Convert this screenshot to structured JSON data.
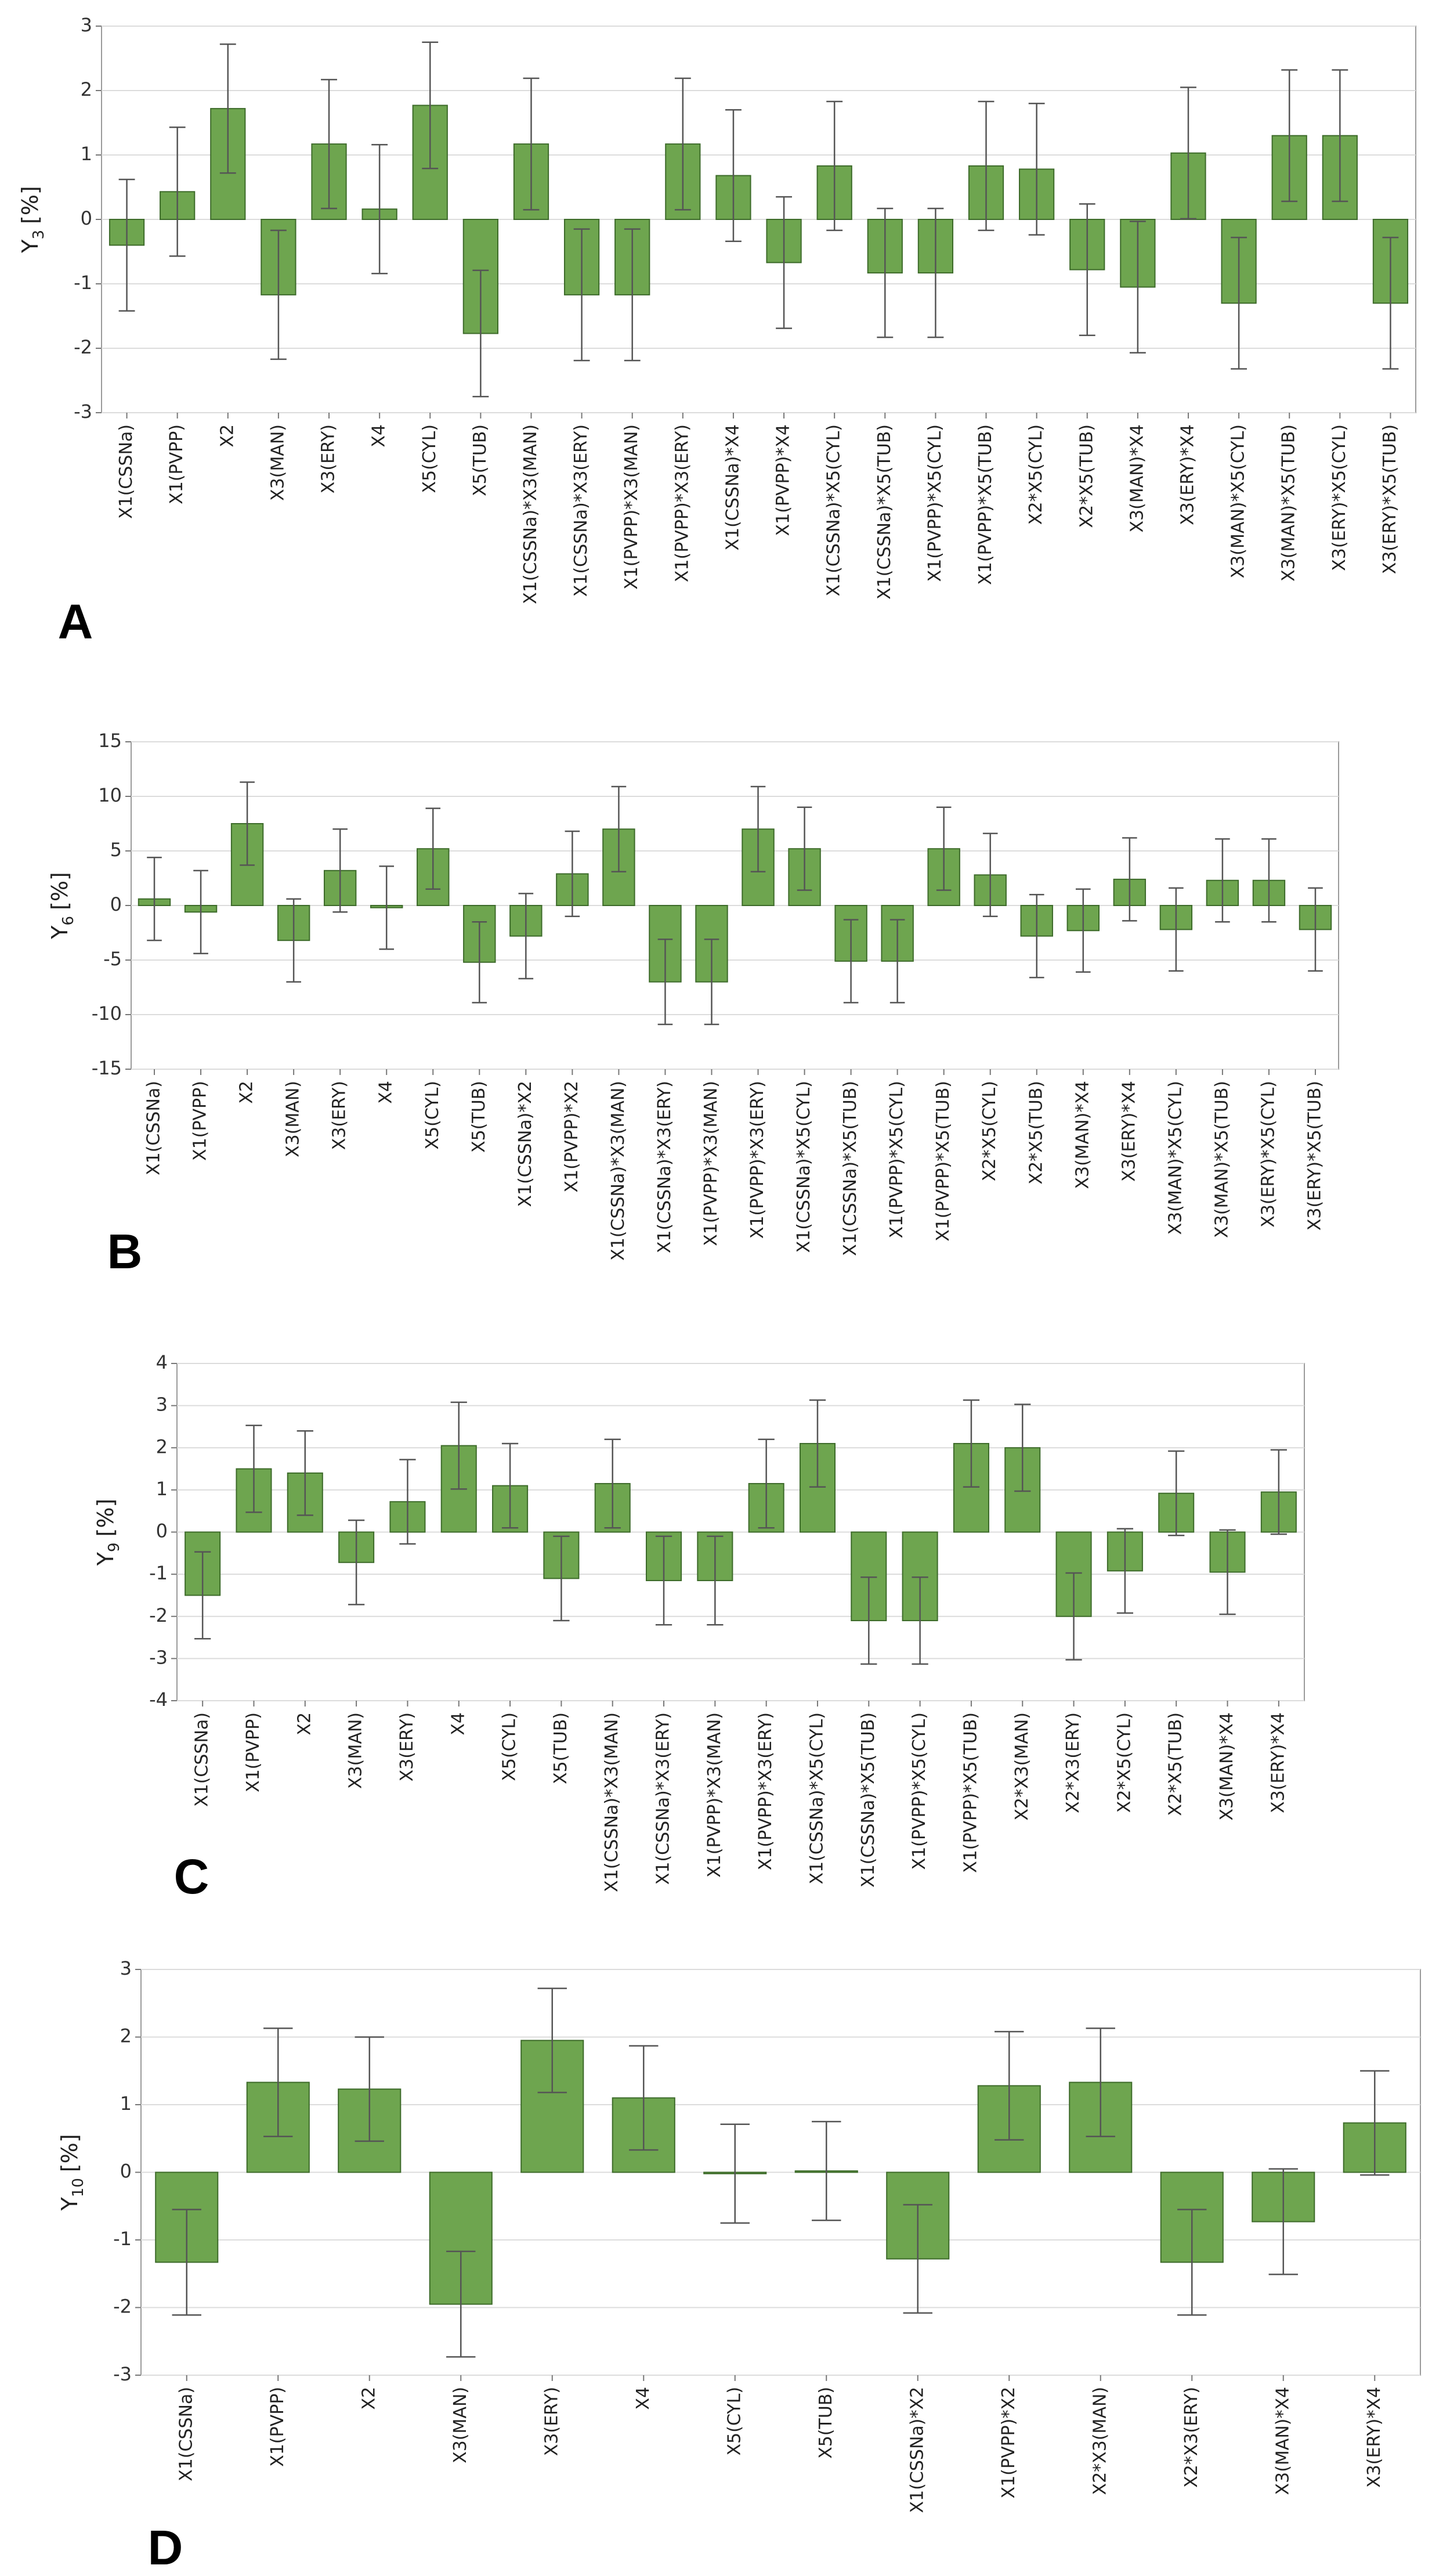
{
  "chart_data": [
    {
      "type": "bar",
      "panel": "A",
      "ylabel": "Y",
      "ylabel_sub": "3",
      "ylabel_unit": "[%]",
      "color": "#6ea54f",
      "grid": true,
      "ylim": [
        -3,
        3
      ],
      "yticks": [
        -3,
        -2,
        -1,
        0,
        1,
        2,
        3
      ],
      "categories": [
        "X1(CSSNa)",
        "X1(PVPP)",
        "X2",
        "X3(MAN)",
        "X3(ERY)",
        "X4",
        "X5(CYL)",
        "X5(TUB)",
        "X1(CSSNa)*X3(MAN)",
        "X1(CSSNa)*X3(ERY)",
        "X1(PVPP)*X3(MAN)",
        "X1(PVPP)*X3(ERY)",
        "X1(CSSNa)*X4",
        "X1(PVPP)*X4",
        "X1(CSSNa)*X5(CYL)",
        "X1(CSSNa)*X5(TUB)",
        "X1(PVPP)*X5(CYL)",
        "X1(PVPP)*X5(TUB)",
        "X2*X5(CYL)",
        "X2*X5(TUB)",
        "X3(MAN)*X4",
        "X3(ERY)*X4",
        "X3(MAN)*X5(CYL)",
        "X3(MAN)*X5(TUB)",
        "X3(ERY)*X5(CYL)",
        "X3(ERY)*X5(TUB)"
      ],
      "values": [
        -0.4,
        0.43,
        1.72,
        -1.17,
        1.17,
        0.16,
        1.77,
        -1.77,
        1.17,
        -1.17,
        -1.17,
        1.17,
        0.68,
        -0.67,
        0.83,
        -0.83,
        -0.83,
        0.83,
        0.78,
        -0.78,
        -1.05,
        1.03,
        -1.3,
        1.3,
        1.3,
        -1.3
      ],
      "errors": [
        1.02,
        1.0,
        1.0,
        1.0,
        1.0,
        1.0,
        0.98,
        0.98,
        1.02,
        1.02,
        1.02,
        1.02,
        1.02,
        1.02,
        1.0,
        1.0,
        1.0,
        1.0,
        1.02,
        1.02,
        1.02,
        1.02,
        1.02,
        1.02,
        1.02,
        1.02
      ]
    },
    {
      "type": "bar",
      "panel": "B",
      "ylabel": "Y",
      "ylabel_sub": "6",
      "ylabel_unit": "[%]",
      "color": "#6ea54f",
      "grid": true,
      "ylim": [
        -15,
        15
      ],
      "yticks": [
        -15,
        -10,
        -5,
        0,
        5,
        10,
        15
      ],
      "categories": [
        "X1(CSSNa)",
        "X1(PVPP)",
        "X2",
        "X3(MAN)",
        "X3(ERY)",
        "X4",
        "X5(CYL)",
        "X5(TUB)",
        "X1(CSSNa)*X2",
        "X1(PVPP)*X2",
        "X1(CSSNa)*X3(MAN)",
        "X1(CSSNa)*X3(ERY)",
        "X1(PVPP)*X3(MAN)",
        "X1(PVPP)*X3(ERY)",
        "X1(CSSNa)*X5(CYL)",
        "X1(CSSNa)*X5(TUB)",
        "X1(PVPP)*X5(CYL)",
        "X1(PVPP)*X5(TUB)",
        "X2*X5(CYL)",
        "X2*X5(TUB)",
        "X3(MAN)*X4",
        "X3(ERY)*X4",
        "X3(MAN)*X5(CYL)",
        "X3(MAN)*X5(TUB)",
        "X3(ERY)*X5(CYL)",
        "X3(ERY)*X5(TUB)"
      ],
      "values": [
        0.6,
        -0.6,
        7.5,
        -3.2,
        3.2,
        -0.2,
        5.2,
        -5.2,
        -2.8,
        2.9,
        7.0,
        -7.0,
        -7.0,
        7.0,
        5.2,
        -5.1,
        -5.1,
        5.2,
        2.8,
        -2.8,
        -2.3,
        2.4,
        -2.2,
        2.3,
        2.3,
        -2.2
      ],
      "errors": [
        3.8,
        3.8,
        3.8,
        3.8,
        3.8,
        3.8,
        3.7,
        3.7,
        3.9,
        3.9,
        3.9,
        3.9,
        3.9,
        3.9,
        3.8,
        3.8,
        3.8,
        3.8,
        3.8,
        3.8,
        3.8,
        3.8,
        3.8,
        3.8,
        3.8,
        3.8
      ]
    },
    {
      "type": "bar",
      "panel": "C",
      "ylabel": "Y",
      "ylabel_sub": "9",
      "ylabel_unit": "[%]",
      "color": "#6ea54f",
      "grid": true,
      "ylim": [
        -4,
        4
      ],
      "yticks": [
        -4,
        -3,
        -2,
        -1,
        0,
        1,
        2,
        3,
        4
      ],
      "categories": [
        "X1(CSSNa)",
        "X1(PVPP)",
        "X2",
        "X3(MAN)",
        "X3(ERY)",
        "X4",
        "X5(CYL)",
        "X5(TUB)",
        "X1(CSSNa)*X3(MAN)",
        "X1(CSSNa)*X3(ERY)",
        "X1(PVPP)*X3(MAN)",
        "X1(PVPP)*X3(ERY)",
        "X1(CSSNa)*X5(CYL)",
        "X1(CSSNa)*X5(TUB)",
        "X1(PVPP)*X5(CYL)",
        "X1(PVPP)*X5(TUB)",
        "X2*X3(MAN)",
        "X2*X3(ERY)",
        "X2*X5(CYL)",
        "X2*X5(TUB)",
        "X3(MAN)*X4",
        "X3(ERY)*X4"
      ],
      "values": [
        -1.5,
        1.5,
        1.4,
        -0.72,
        0.72,
        2.05,
        1.1,
        -1.1,
        1.15,
        -1.15,
        -1.15,
        1.15,
        2.1,
        -2.1,
        -2.1,
        2.1,
        2.0,
        -2.0,
        -0.92,
        0.92,
        -0.95,
        0.95
      ],
      "errors": [
        1.03,
        1.03,
        1.0,
        1.0,
        1.0,
        1.03,
        1.0,
        1.0,
        1.05,
        1.05,
        1.05,
        1.05,
        1.03,
        1.03,
        1.03,
        1.03,
        1.03,
        1.03,
        1.0,
        1.0,
        1.0,
        1.0
      ]
    },
    {
      "type": "bar",
      "panel": "D",
      "ylabel": "Y",
      "ylabel_sub": "10",
      "ylabel_unit": "[%]",
      "color": "#6ea54f",
      "grid": true,
      "ylim": [
        -3,
        3
      ],
      "yticks": [
        -3,
        -2,
        -1,
        0,
        1,
        2,
        3
      ],
      "categories": [
        "X1(CSSNa)",
        "X1(PVPP)",
        "X2",
        "X3(MAN)",
        "X3(ERY)",
        "X4",
        "X5(CYL)",
        "X5(TUB)",
        "X1(CSSNa)*X2",
        "X1(PVPP)*X2",
        "X2*X3(MAN)",
        "X2*X3(ERY)",
        "X3(MAN)*X4",
        "X3(ERY)*X4"
      ],
      "values": [
        -1.33,
        1.33,
        1.23,
        -1.95,
        1.95,
        1.1,
        -0.02,
        0.02,
        -1.28,
        1.28,
        1.33,
        -1.33,
        -0.73,
        0.73
      ],
      "errors": [
        0.78,
        0.8,
        0.77,
        0.78,
        0.77,
        0.77,
        0.73,
        0.73,
        0.8,
        0.8,
        0.8,
        0.78,
        0.78,
        0.77
      ]
    }
  ]
}
